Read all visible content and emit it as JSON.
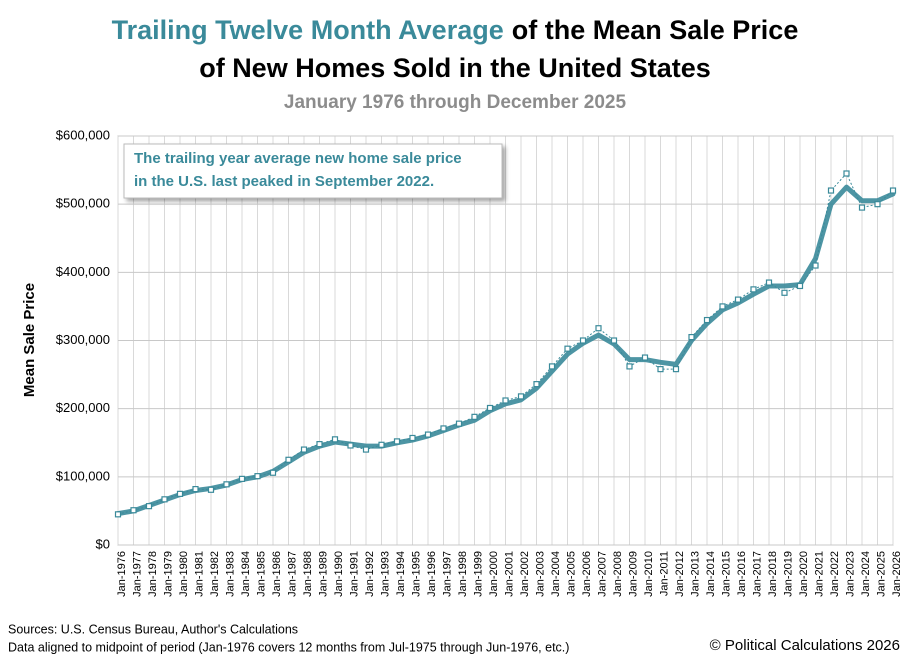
{
  "chart_data": {
    "type": "line",
    "title": [
      "Trailing Twelve Month Average",
      "of the Mean Sale Price",
      "of New Homes Sold in the United States"
    ],
    "subtitle": "January 1976 through December 2025",
    "y_label": "Mean Sale Price",
    "annotation": [
      "The trailing year average new home sale price",
      "in the U.S. last peaked in September 2022."
    ],
    "sources": [
      "Sources: U.S. Census Bureau, Author's Calculations",
      "Data aligned to midpoint of period (Jan-1976 covers 12 months from Jul-1975 through Jun-1976, etc.)"
    ],
    "copyright": "© Political Calculations 2026",
    "categories": [
      "Jan-1976",
      "Jan-1977",
      "Jan-1978",
      "Jan-1979",
      "Jan-1980",
      "Jan-1981",
      "Jan-1982",
      "Jan-1983",
      "Jan-1984",
      "Jan-1985",
      "Jan-1986",
      "Jan-1987",
      "Jan-1988",
      "Jan-1989",
      "Jan-1990",
      "Jan-1991",
      "Jan-1992",
      "Jan-1993",
      "Jan-1994",
      "Jan-1995",
      "Jan-1996",
      "Jan-1997",
      "Jan-1998",
      "Jan-1999",
      "Jan-2000",
      "Jan-2001",
      "Jan-2002",
      "Jan-2003",
      "Jan-2004",
      "Jan-2005",
      "Jan-2006",
      "Jan-2007",
      "Jan-2008",
      "Jan-2009",
      "Jan-2010",
      "Jan-2011",
      "Jan-2012",
      "Jan-2013",
      "Jan-2014",
      "Jan-2015",
      "Jan-2016",
      "Jan-2017",
      "Jan-2018",
      "Jan-2019",
      "Jan-2020",
      "Jan-2021",
      "Jan-2022",
      "Jan-2023",
      "Jan-2024",
      "Jan-2025",
      "Jan-2026"
    ],
    "series": [
      {
        "color": "#3a8a9a",
        "style": "line",
        "values": [
          46000,
          50000,
          58000,
          66000,
          74000,
          80000,
          83000,
          88000,
          96000,
          100000,
          108000,
          122000,
          136000,
          145000,
          151000,
          148000,
          145000,
          145000,
          150000,
          154000,
          160000,
          168000,
          176000,
          183000,
          197000,
          207000,
          213000,
          230000,
          255000,
          280000,
          296000,
          308000,
          295000,
          272000,
          272000,
          268000,
          265000,
          300000,
          325000,
          345000,
          355000,
          368000,
          380000,
          380000,
          382000,
          420000,
          500000,
          525000,
          505000,
          505000,
          515000
        ]
      },
      {
        "color": "#3a8a9a",
        "style": "markers",
        "values": [
          45000,
          51000,
          57000,
          67000,
          75000,
          82000,
          81000,
          89000,
          97000,
          101000,
          106000,
          125000,
          140000,
          148000,
          155000,
          146000,
          140000,
          147000,
          152000,
          157000,
          162000,
          171000,
          178000,
          188000,
          201000,
          212000,
          218000,
          236000,
          262000,
          288000,
          300000,
          318000,
          300000,
          262000,
          275000,
          258000,
          258000,
          305000,
          330000,
          350000,
          360000,
          375000,
          385000,
          370000,
          380000,
          410000,
          520000,
          545000,
          495000,
          500000,
          520000
        ]
      }
    ],
    "ylim": [
      0,
      600000
    ],
    "yticks": [
      {
        "value": 0,
        "label": "$0"
      },
      {
        "value": 100000,
        "label": "$100,000"
      },
      {
        "value": 200000,
        "label": "$200,000"
      },
      {
        "value": 300000,
        "label": "$300,000"
      },
      {
        "value": 400000,
        "label": "$400,000"
      },
      {
        "value": 500000,
        "label": "$500,000"
      },
      {
        "value": 600000,
        "label": "$600,000"
      }
    ],
    "grid": true
  }
}
